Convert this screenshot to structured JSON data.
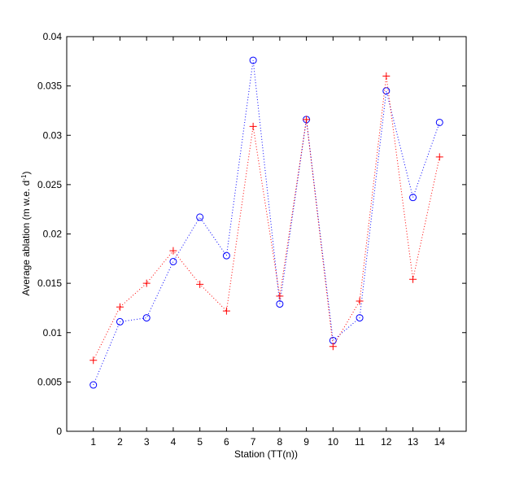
{
  "chart_data": {
    "type": "line",
    "title": "",
    "xlabel": "Station (TT(n))",
    "ylabel": "Average ablation (m w.e. d",
    "ylabel_sup": "-1",
    "ylabel_end": ")",
    "xlim": [
      0,
      15
    ],
    "ylim": [
      0,
      0.04
    ],
    "x_ticks": [
      1,
      2,
      3,
      4,
      5,
      6,
      7,
      8,
      9,
      10,
      11,
      12,
      13,
      14
    ],
    "y_ticks": [
      0,
      0.005,
      0.01,
      0.015,
      0.02,
      0.025,
      0.03,
      0.035,
      0.04
    ],
    "y_tick_labels": [
      "0",
      "0.005",
      "0.01",
      "0.015",
      "0.02",
      "0.025",
      "0.03",
      "0.035",
      "0.04"
    ],
    "grid": false,
    "x": [
      1,
      2,
      3,
      4,
      5,
      6,
      7,
      8,
      9,
      10,
      11,
      12,
      13,
      14
    ],
    "series": [
      {
        "marker": "circle",
        "line_style": "dotted",
        "color": "#0000ff",
        "values": [
          0.0047,
          0.0111,
          0.0115,
          0.0172,
          0.0217,
          0.0178,
          0.0376,
          0.0129,
          0.0316,
          0.0092,
          0.0115,
          0.0345,
          0.0237,
          0.0313
        ]
      },
      {
        "marker": "plus",
        "line_style": "dotted",
        "color": "#ff0000",
        "values": [
          0.0072,
          0.0126,
          0.015,
          0.0183,
          0.0149,
          0.0122,
          0.0309,
          0.0137,
          0.0316,
          0.0086,
          0.0132,
          0.036,
          0.0154,
          0.0278
        ]
      }
    ]
  }
}
